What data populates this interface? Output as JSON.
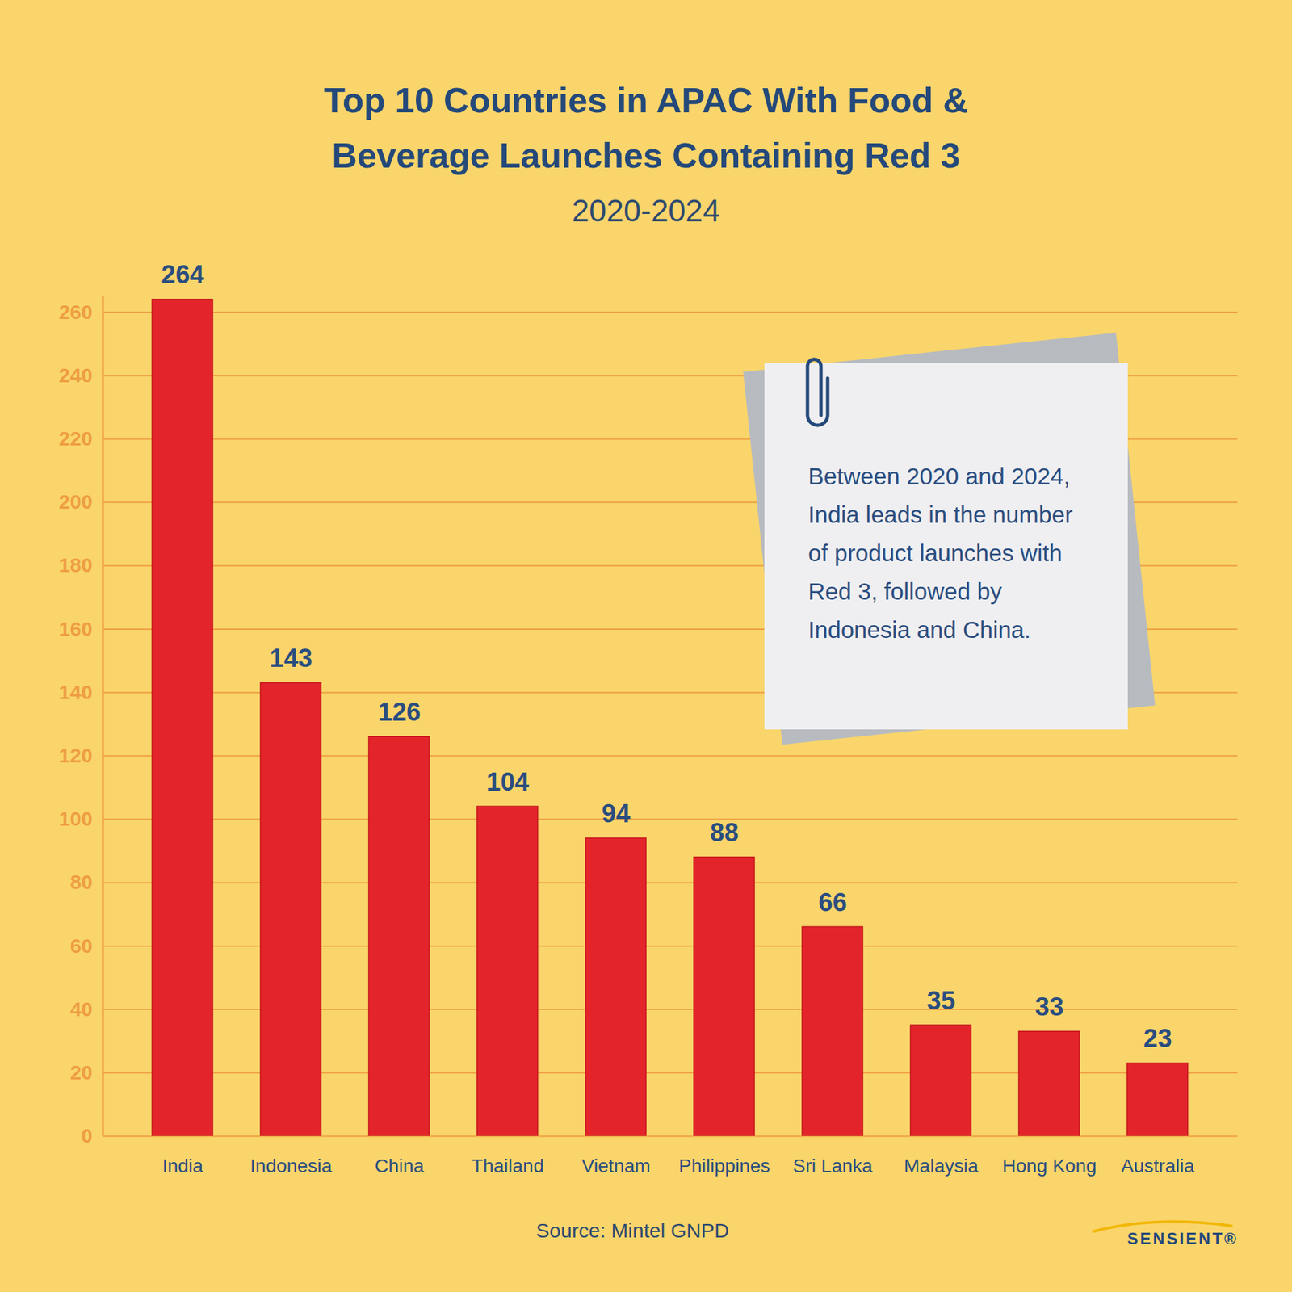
{
  "chart_data": {
    "type": "bar",
    "title": "Top 10 Countries in APAC With Food & Beverage Launches Containing Red 3",
    "subtitle": "2020-2024",
    "categories": [
      "India",
      "Indonesia",
      "China",
      "Thailand",
      "Vietnam",
      "Philippines",
      "Sri Lanka",
      "Malaysia",
      "Hong Kong",
      "Australia"
    ],
    "values": [
      264,
      143,
      126,
      104,
      94,
      88,
      66,
      35,
      33,
      23
    ],
    "color": "#e3242b",
    "ylim": [
      0,
      265
    ],
    "yticks": [
      0,
      20,
      40,
      60,
      80,
      100,
      120,
      140,
      160,
      180,
      200,
      220,
      240,
      260
    ],
    "grid": true,
    "data_labels": true,
    "annotations": [
      "Between 2020 and 2024, India leads in the number of product launches with Red 3, followed by Indonesia and China."
    ],
    "caption": "Source: Mintel GNPD",
    "logo": "SENSIENT®"
  }
}
